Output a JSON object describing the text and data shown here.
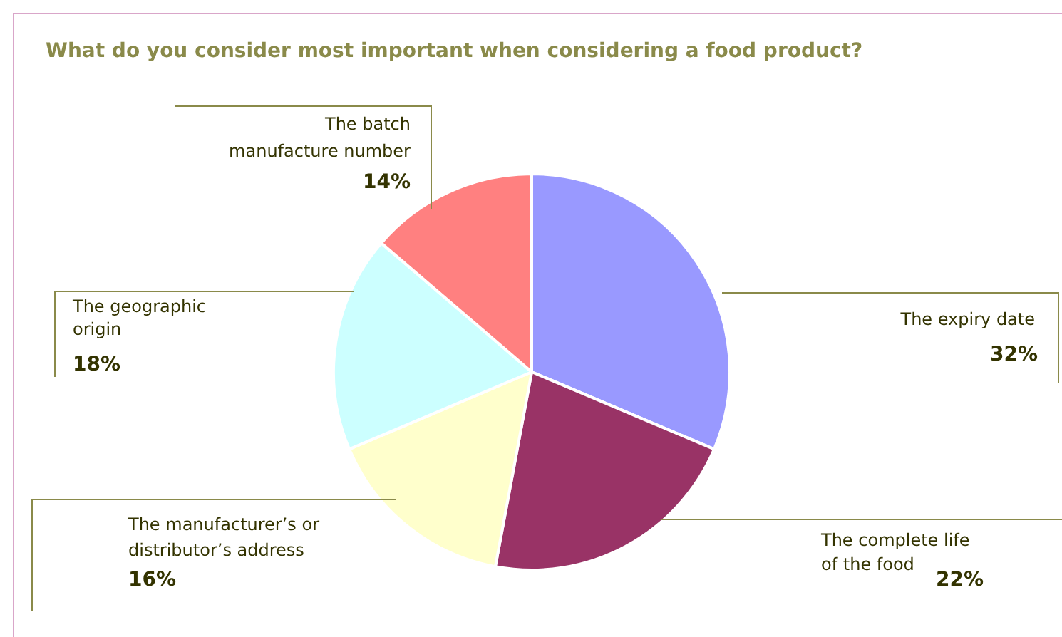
{
  "chart_data": {
    "type": "pie",
    "title": "What do you consider most important when considering a food product?",
    "categories": [
      "The expiry date",
      "The complete life of the food",
      "The manufacturer’s or distributor’s address",
      "The geographic origin",
      "The batch manufacture number"
    ],
    "values": [
      32,
      22,
      16,
      18,
      14
    ],
    "value_labels": [
      "32%",
      "22%",
      "16%",
      "18%",
      "14%"
    ],
    "colors": [
      "#9999ff",
      "#993366",
      "#ffffcc",
      "#ccffff",
      "#ff8080"
    ],
    "legend": false
  }
}
